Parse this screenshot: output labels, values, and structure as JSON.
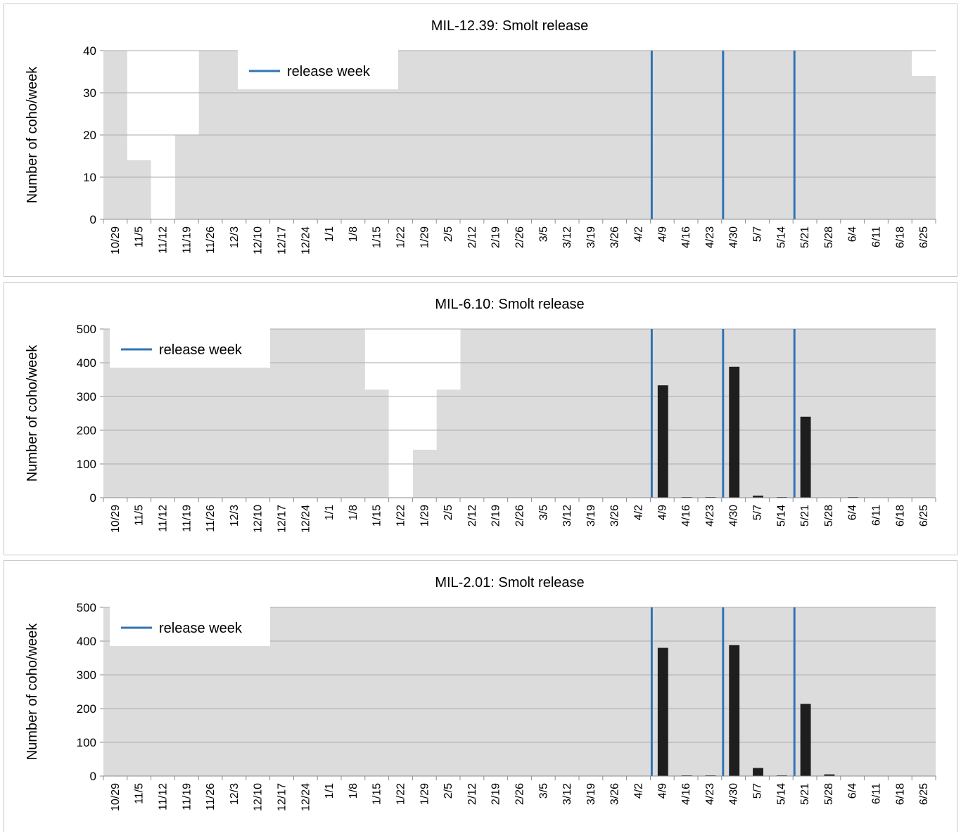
{
  "chart_data": [
    {
      "type": "bar",
      "title": "MIL-12.39: Smolt release",
      "ylabel": "Number of coho/week",
      "xlabel": "",
      "ylim": [
        0,
        40
      ],
      "yticks": [
        0,
        10,
        20,
        30,
        40
      ],
      "grid": true,
      "legend": {
        "label": "release week",
        "placement": "top-left",
        "color": "#2e75b6"
      },
      "categories": [
        "10/29",
        "11/5",
        "11/12",
        "11/19",
        "11/26",
        "12/3",
        "12/10",
        "12/17",
        "12/24",
        "1/1",
        "1/8",
        "1/15",
        "1/22",
        "1/29",
        "2/5",
        "2/12",
        "2/19",
        "2/26",
        "3/5",
        "3/12",
        "3/19",
        "3/26",
        "4/2",
        "4/9",
        "4/16",
        "4/23",
        "4/30",
        "5/7",
        "5/14",
        "5/21",
        "5/28",
        "6/4",
        "6/11",
        "6/18",
        "6/25"
      ],
      "series": [
        {
          "values": [
            0,
            0,
            0,
            0,
            0,
            0,
            0,
            0,
            0,
            0,
            0,
            0,
            0,
            0,
            0,
            0,
            0,
            0,
            0,
            0,
            0,
            0,
            0,
            0,
            0,
            0,
            0,
            0,
            0,
            0,
            0,
            0,
            0,
            0,
            0
          ]
        }
      ],
      "release_weeks": [
        "4/9",
        "4/30",
        "5/21"
      ],
      "no_data_regions": [
        {
          "category": "11/5",
          "from": 14,
          "to": 40
        },
        {
          "category": "11/12",
          "from": 0,
          "to": 40
        },
        {
          "category": "11/19",
          "from": 20,
          "to": 40
        },
        {
          "category": "6/25",
          "from": 34,
          "to": 40
        }
      ]
    },
    {
      "type": "bar",
      "title": "MIL-6.10: Smolt release",
      "ylabel": "Number of coho/week",
      "xlabel": "",
      "ylim": [
        0,
        500
      ],
      "yticks": [
        0,
        100,
        200,
        300,
        400,
        500
      ],
      "grid": true,
      "legend": {
        "label": "release week",
        "placement": "top-left",
        "color": "#2e75b6"
      },
      "categories": [
        "10/29",
        "11/5",
        "11/12",
        "11/19",
        "11/26",
        "12/3",
        "12/10",
        "12/17",
        "12/24",
        "1/1",
        "1/8",
        "1/15",
        "1/22",
        "1/29",
        "2/5",
        "2/12",
        "2/19",
        "2/26",
        "3/5",
        "3/12",
        "3/19",
        "3/26",
        "4/2",
        "4/9",
        "4/16",
        "4/23",
        "4/30",
        "5/7",
        "5/14",
        "5/21",
        "5/28",
        "6/4",
        "6/11",
        "6/18",
        "6/25"
      ],
      "series": [
        {
          "values": [
            0,
            0,
            0,
            0,
            0,
            0,
            0,
            0,
            0,
            0,
            0,
            0,
            0,
            0,
            0,
            0,
            0,
            0,
            0,
            0,
            0,
            0,
            0,
            333,
            2,
            2,
            388,
            6,
            2,
            240,
            0,
            2,
            0,
            0,
            0
          ]
        }
      ],
      "release_weeks": [
        "4/9",
        "4/30",
        "5/21"
      ],
      "no_data_regions": [
        {
          "category": "1/15",
          "from": 320,
          "to": 500
        },
        {
          "category": "1/22",
          "from": 0,
          "to": 500
        },
        {
          "category": "1/29",
          "from": 142,
          "to": 500
        },
        {
          "category": "2/5",
          "from": 320,
          "to": 500
        }
      ]
    },
    {
      "type": "bar",
      "title": "MIL-2.01: Smolt release",
      "ylabel": "Number of coho/week",
      "xlabel": "",
      "ylim": [
        0,
        500
      ],
      "yticks": [
        0,
        100,
        200,
        300,
        400,
        500
      ],
      "grid": true,
      "legend": {
        "label": "release week",
        "placement": "top-left",
        "color": "#2e75b6"
      },
      "categories": [
        "10/29",
        "11/5",
        "11/12",
        "11/19",
        "11/26",
        "12/3",
        "12/10",
        "12/17",
        "12/24",
        "1/1",
        "1/8",
        "1/15",
        "1/22",
        "1/29",
        "2/5",
        "2/12",
        "2/19",
        "2/26",
        "3/5",
        "3/12",
        "3/19",
        "3/26",
        "4/2",
        "4/9",
        "4/16",
        "4/23",
        "4/30",
        "5/7",
        "5/14",
        "5/21",
        "5/28",
        "6/4",
        "6/11",
        "6/18",
        "6/25"
      ],
      "series": [
        {
          "values": [
            0,
            0,
            0,
            0,
            0,
            0,
            0,
            0,
            0,
            0,
            0,
            0,
            0,
            0,
            0,
            0,
            0,
            0,
            0,
            0,
            0,
            0,
            0,
            380,
            2,
            2,
            388,
            24,
            2,
            214,
            5,
            0,
            0,
            0,
            0
          ]
        }
      ],
      "release_weeks": [
        "4/9",
        "4/30",
        "5/21"
      ],
      "no_data_regions": []
    }
  ],
  "colors": {
    "plot_background": "#dcdcdc",
    "gridline": "#ababab",
    "bar": "#1e1e1e",
    "release_line": "#2e75b6",
    "axis": "#8c8c8c"
  }
}
